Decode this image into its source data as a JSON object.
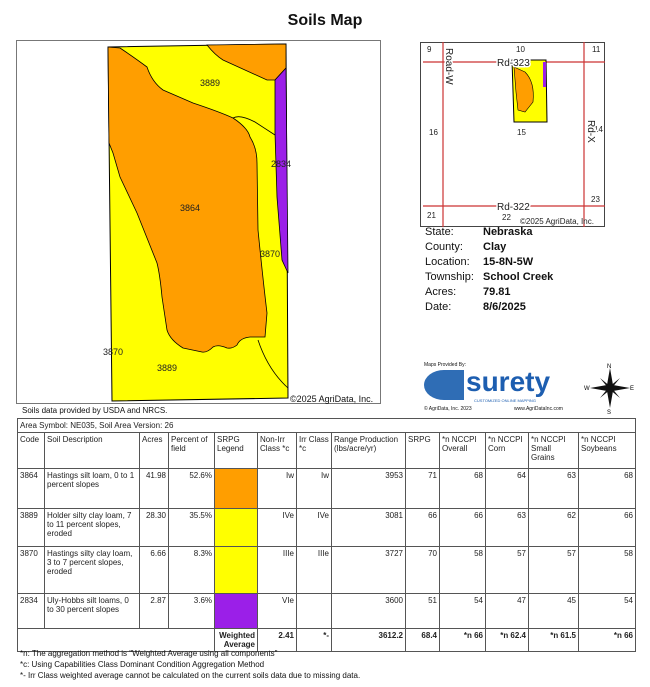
{
  "title": "Soils Map",
  "map": {
    "labels": [
      "3889",
      "3864",
      "2834",
      "3870",
      "3870",
      "3889"
    ],
    "copyright": "©2025 AgriData, Inc.",
    "source": "Soils data provided by USDA and NRCS.",
    "colors": {
      "orange": "#FF9E00",
      "yellow": "#FFFF00",
      "purple": "#9B1FE8"
    }
  },
  "inset": {
    "sections": [
      "9",
      "10",
      "11",
      "16",
      "15",
      "14",
      "21",
      "22",
      "23"
    ],
    "roads": [
      "Rd-323",
      "Road-W",
      "Rd-X",
      "Rd-322"
    ],
    "copyright": "©2025 AgriData, Inc."
  },
  "info": [
    {
      "k": "State:",
      "v": "Nebraska"
    },
    {
      "k": "County:",
      "v": "Clay"
    },
    {
      "k": "Location:",
      "v": "15-8N-5W"
    },
    {
      "k": "Township:",
      "v": "School Creek"
    },
    {
      "k": "Acres:",
      "v": "79.81"
    },
    {
      "k": "Date:",
      "v": "8/6/2025"
    }
  ],
  "logo": {
    "provided": "Maps Provided By:",
    "name": "surety",
    "tagline": "CUSTOMIZED ONLINE MAPPING",
    "copy": "© AgriData, Inc. 2023",
    "url": "www.AgriDataInc.com"
  },
  "compass": {
    "n": "N",
    "s": "S",
    "e": "E",
    "w": "W"
  },
  "table": {
    "area": "Area Symbol: NE035, Soil Area Version: 26",
    "headers": [
      "Code",
      "Soil Description",
      "Acres",
      "Percent of field",
      "SRPG Legend",
      "Non-Irr Class *c",
      "Irr Class *c",
      "Range Production (lbs/acre/yr)",
      "SRPG",
      "*n NCCPI Overall",
      "*n NCCPI Corn",
      "*n NCCPI Small Grains",
      "*n NCCPI Soybeans"
    ],
    "rows": [
      {
        "code": "3864",
        "desc": "Hastings silt loam, 0 to 1 percent slopes",
        "acres": "41.98",
        "pct": "52.6%",
        "color": "#FF9E00",
        "nonirr": "Iw",
        "irr": "Iw",
        "range": "3953",
        "srpg": "71",
        "overall": "68",
        "corn": "64",
        "small": "63",
        "soy": "68"
      },
      {
        "code": "3889",
        "desc": "Holder silty clay loam, 7 to 11 percent slopes, eroded",
        "acres": "28.30",
        "pct": "35.5%",
        "color": "#FFFF00",
        "nonirr": "IVe",
        "irr": "IVe",
        "range": "3081",
        "srpg": "66",
        "overall": "66",
        "corn": "63",
        "small": "62",
        "soy": "66"
      },
      {
        "code": "3870",
        "desc": "Hastings silty clay loam, 3 to 7 percent slopes, eroded",
        "acres": "6.66",
        "pct": "8.3%",
        "color": "#FFFF00",
        "nonirr": "IIIe",
        "irr": "IIIe",
        "range": "3727",
        "srpg": "70",
        "overall": "58",
        "corn": "57",
        "small": "57",
        "soy": "58"
      },
      {
        "code": "2834",
        "desc": "Uly-Hobbs silt loams, 0 to 30 percent slopes",
        "acres": "2.87",
        "pct": "3.6%",
        "color": "#9B1FE8",
        "nonirr": "VIe",
        "irr": "",
        "range": "3600",
        "srpg": "51",
        "overall": "54",
        "corn": "47",
        "small": "45",
        "soy": "54"
      }
    ],
    "wa": {
      "label": "Weighted Average",
      "nonirr": "2.41",
      "irr": "*-",
      "range": "3612.2",
      "srpg": "68.4",
      "overall": "*n 66",
      "corn": "*n 62.4",
      "small": "*n 61.5",
      "soy": "*n 66"
    }
  },
  "footnotes": [
    "*n: The aggregation method is \"Weighted Average using all components\"",
    "*c: Using Capabilities Class Dominant Condition Aggregation Method",
    "*- Irr Class weighted average cannot be calculated on the current soils data due to missing data."
  ]
}
